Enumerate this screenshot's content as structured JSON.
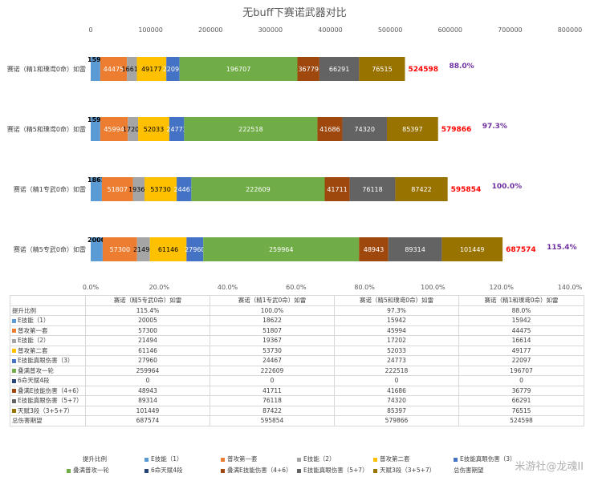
{
  "chart_data": {
    "type": "bar",
    "orientation": "horizontal",
    "stacked": true,
    "title": "无buff下赛诺武器对比",
    "top_axis": {
      "ticks": [
        "0",
        "100000",
        "200000",
        "300000",
        "400000",
        "500000",
        "600000",
        "700000",
        "800000"
      ],
      "range": [
        0,
        800000
      ]
    },
    "bottom_axis": {
      "ticks": [
        "0.0%",
        "20.0%",
        "40.0%",
        "60.0%",
        "80.0%",
        "100.0%",
        "120.0%",
        "140.0%"
      ],
      "range": [
        0,
        1.4
      ]
    },
    "categories": [
      "赛诺（精1和璞鸢0命）如雷",
      "赛诺（精5和璞鸢0命）如雷",
      "赛诺（精1专武0命）如雷",
      "赛诺（精5专武0命）如雷"
    ],
    "series": [
      {
        "name": "E技能（1）",
        "color": "#5b9bd5",
        "values": [
          15942,
          15942,
          18622,
          20005
        ]
      },
      {
        "name": "普攻第一套",
        "color": "#ed7d31",
        "values": [
          44475,
          45994,
          51807,
          57300
        ]
      },
      {
        "name": "E技能（2）",
        "color": "#a5a5a5",
        "values": [
          16614,
          17202,
          19367,
          21494
        ]
      },
      {
        "name": "普攻第二套",
        "color": "#ffc000",
        "values": [
          49177,
          52033,
          53730,
          61146
        ]
      },
      {
        "name": "E技能真眼伤害（3）",
        "color": "#4472c4",
        "values": [
          22097,
          24773,
          24467,
          27960
        ]
      },
      {
        "name": "叠满普攻一轮",
        "color": "#70ad47",
        "values": [
          196707,
          222518,
          222609,
          259964
        ]
      },
      {
        "name": "6命天赋4段",
        "color": "#264478",
        "values": [
          0,
          0,
          0,
          0
        ]
      },
      {
        "name": "叠满E技能伤害（4+6）",
        "color": "#9e480e",
        "values": [
          36779,
          41686,
          41711,
          48943
        ]
      },
      {
        "name": "E技能真眼伤害（5+7）",
        "color": "#636363",
        "values": [
          66291,
          74320,
          76118,
          89314
        ]
      },
      {
        "name": "天赋3段（3+5+7）",
        "color": "#997300",
        "values": [
          76515,
          85397,
          87422,
          101449
        ]
      }
    ],
    "totals": [
      524598,
      579866,
      595854,
      687574
    ],
    "ratio_labels": [
      "88.0%",
      "97.3%",
      "100.0%",
      "115.4%"
    ],
    "total_series_name": "总伤害期望",
    "ratio_series_name": "提升比例",
    "colors": {
      "total_label": "#ff0000",
      "ratio_label": "#7030a0"
    }
  },
  "table": {
    "columns": [
      "赛诺（精5专武0命）如雷",
      "赛诺（精1专武0命）如雷",
      "赛诺（精5和璞鸢0命）如雷",
      "赛诺（精1和璞鸢0命）如雷"
    ],
    "rows": [
      {
        "label": "提升比例",
        "values": [
          "115.4%",
          "100.0%",
          "97.3%",
          "88.0%"
        ]
      },
      {
        "label": "E技能（1）",
        "color": "#5b9bd5",
        "values": [
          "20005",
          "18622",
          "15942",
          "15942"
        ]
      },
      {
        "label": "普攻第一套",
        "color": "#ed7d31",
        "values": [
          "57300",
          "51807",
          "45994",
          "44475"
        ]
      },
      {
        "label": "E技能（2）",
        "color": "#a5a5a5",
        "values": [
          "21494",
          "19367",
          "17202",
          "16614"
        ]
      },
      {
        "label": "普攻第二套",
        "color": "#ffc000",
        "values": [
          "61146",
          "53730",
          "52033",
          "49177"
        ]
      },
      {
        "label": "E技能真眼伤害（3）",
        "color": "#4472c4",
        "values": [
          "27960",
          "24467",
          "24773",
          "22097"
        ]
      },
      {
        "label": "叠满普攻一轮",
        "color": "#70ad47",
        "values": [
          "259964",
          "222609",
          "222518",
          "196707"
        ]
      },
      {
        "label": "6命天赋4段",
        "color": "#264478",
        "values": [
          "0",
          "0",
          "0",
          "0"
        ]
      },
      {
        "label": "叠满E技能伤害（4+6）",
        "color": "#9e480e",
        "values": [
          "48943",
          "41711",
          "41686",
          "36779"
        ]
      },
      {
        "label": "E技能真眼伤害（5+7）",
        "color": "#636363",
        "values": [
          "89314",
          "76118",
          "74320",
          "66291"
        ]
      },
      {
        "label": "天赋3段（3+5+7）",
        "color": "#997300",
        "values": [
          "101449",
          "87422",
          "85397",
          "76515"
        ]
      },
      {
        "label": "总伤害期望",
        "values": [
          "687574",
          "595854",
          "579866",
          "524598"
        ]
      }
    ]
  },
  "legend": [
    {
      "label": "提升比例",
      "color": ""
    },
    {
      "label": "E技能（1）",
      "color": "#5b9bd5"
    },
    {
      "label": "普攻第一套",
      "color": "#ed7d31"
    },
    {
      "label": "E技能（2）",
      "color": "#a5a5a5"
    },
    {
      "label": "普攻第二套",
      "color": "#ffc000"
    },
    {
      "label": "E技能真眼伤害（3）",
      "color": "#4472c4"
    },
    {
      "label": "叠满普攻一轮",
      "color": "#70ad47"
    },
    {
      "label": "6命天赋4段",
      "color": "#264478"
    },
    {
      "label": "叠满E技能伤害（4+6）",
      "color": "#9e480e"
    },
    {
      "label": "E技能真眼伤害（5+7）",
      "color": "#636363"
    },
    {
      "label": "天赋3段（3+5+7）",
      "color": "#997300"
    },
    {
      "label": "总伤害期望",
      "color": ""
    }
  ],
  "watermark": "米游社@龙魂II"
}
